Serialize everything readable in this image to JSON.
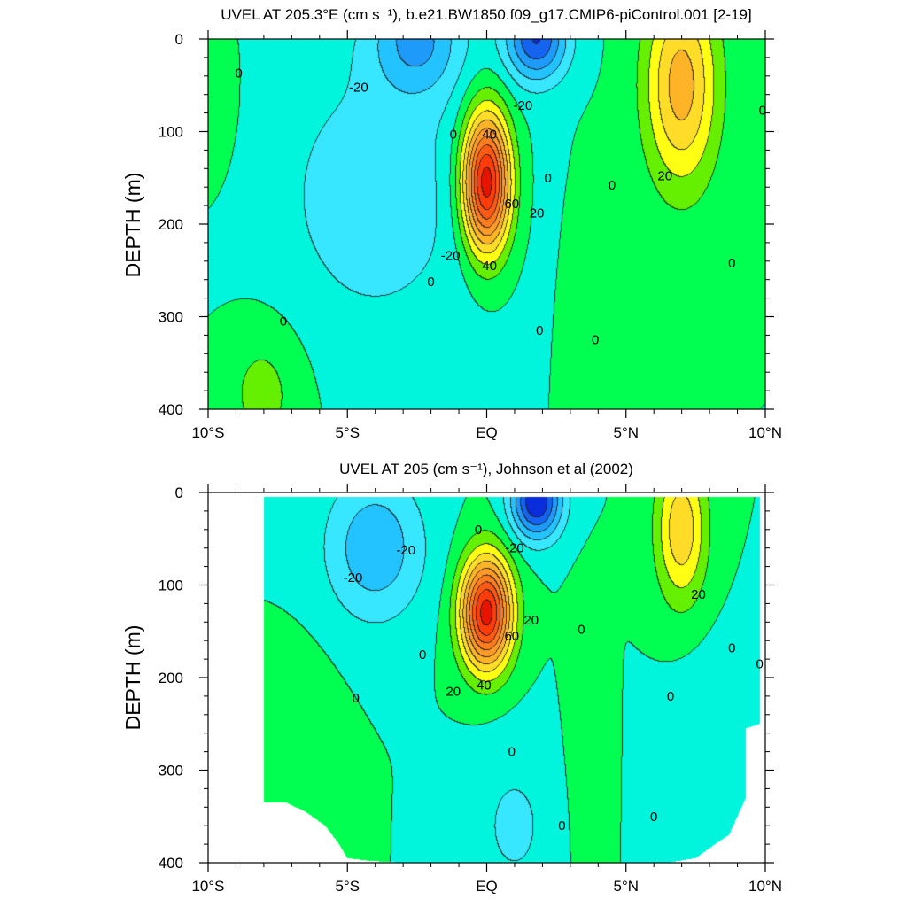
{
  "chart_data": [
    {
      "type": "contour",
      "title": "UVEL AT 205.3°E (cm s⁻¹), b.e21.BW1850.f09_g17.CMIP6-piControl.001 [2-19]",
      "ylabel": "DEPTH (m)",
      "xlabel": "",
      "x_ticks": [
        "10°S",
        "5°S",
        "EQ",
        "5°N",
        "10°N"
      ],
      "x_tick_values": [
        -10,
        -5,
        0,
        5,
        10
      ],
      "y_ticks": [
        "0",
        "100",
        "200",
        "300",
        "400"
      ],
      "y_tick_values": [
        0,
        100,
        200,
        300,
        400
      ],
      "xlim": [
        -10,
        10
      ],
      "ylim": [
        0,
        400
      ],
      "y_reversed": true,
      "contour_interval": 10,
      "features": [
        {
          "name": "EUC",
          "lat": 0.0,
          "depth": 155,
          "peak": 100,
          "sigma_lat": 0.85,
          "sigma_depth": 75
        },
        {
          "name": "NECC",
          "lat": 7.0,
          "depth": 50,
          "peak": 45,
          "sigma_lat": 1.3,
          "sigma_depth": 110
        },
        {
          "name": "SEC_north",
          "lat": 1.8,
          "depth": 0,
          "peak": -50,
          "sigma_lat": 1.1,
          "sigma_depth": 45
        },
        {
          "name": "SEC_south",
          "lat": -2.5,
          "depth": 0,
          "peak": -30,
          "sigma_lat": 1.6,
          "sigma_depth": 60
        },
        {
          "name": "SEC_broad",
          "lat": -4.0,
          "depth": 170,
          "peak": -15,
          "sigma_lat": 4.0,
          "sigma_depth": 170
        },
        {
          "name": "SSCC",
          "lat": -8.0,
          "depth": 380,
          "peak": 14,
          "sigma_lat": 1.5,
          "sigma_depth": 80
        },
        {
          "name": "NSCC",
          "lat": 4.0,
          "depth": 300,
          "peak": 8,
          "sigma_lat": 1.0,
          "sigma_depth": 140
        },
        {
          "name": "south_edge",
          "lat": -10.0,
          "depth": 80,
          "peak": 6,
          "sigma_lat": 1.2,
          "sigma_depth": 90
        }
      ],
      "contour_labels": [
        {
          "text": "0",
          "lat": -8.9,
          "depth": 37
        },
        {
          "text": "-20",
          "lat": -4.6,
          "depth": 52
        },
        {
          "text": "-20",
          "lat": 1.3,
          "depth": 72
        },
        {
          "text": "0",
          "lat": 9.9,
          "depth": 77
        },
        {
          "text": "40",
          "lat": 0.1,
          "depth": 103
        },
        {
          "text": "0",
          "lat": -1.2,
          "depth": 103
        },
        {
          "text": "0",
          "lat": 2.2,
          "depth": 150
        },
        {
          "text": "0",
          "lat": 4.5,
          "depth": 158
        },
        {
          "text": "20",
          "lat": 6.4,
          "depth": 148
        },
        {
          "text": "60",
          "lat": 0.9,
          "depth": 178
        },
        {
          "text": "20",
          "lat": 1.8,
          "depth": 188
        },
        {
          "text": "-20",
          "lat": -1.3,
          "depth": 234
        },
        {
          "text": "40",
          "lat": 0.1,
          "depth": 245
        },
        {
          "text": "0",
          "lat": 8.8,
          "depth": 242
        },
        {
          "text": "0",
          "lat": -2.0,
          "depth": 262
        },
        {
          "text": "0",
          "lat": -7.3,
          "depth": 305
        },
        {
          "text": "0",
          "lat": 1.9,
          "depth": 315
        },
        {
          "text": "0",
          "lat": 3.9,
          "depth": 325
        }
      ]
    },
    {
      "type": "contour",
      "title": "UVEL AT 205 (cm s⁻¹), Johnson et al (2002)",
      "ylabel": "DEPTH (m)",
      "xlabel": "",
      "x_ticks": [
        "10°S",
        "5°S",
        "EQ",
        "5°N",
        "10°N"
      ],
      "x_tick_values": [
        -10,
        -5,
        0,
        5,
        10
      ],
      "y_ticks": [
        "0",
        "100",
        "200",
        "300",
        "400"
      ],
      "y_tick_values": [
        0,
        100,
        200,
        300,
        400
      ],
      "xlim": [
        -10,
        10
      ],
      "ylim": [
        0,
        400
      ],
      "y_reversed": true,
      "contour_interval": 10,
      "data_region": {
        "lat_min": -8.0,
        "lat_max": 9.8,
        "depth_min": 5
      },
      "missing_bottom": [
        {
          "lat": -8.0,
          "depth": 335
        },
        {
          "lat": -7.2,
          "depth": 335
        },
        {
          "lat": -6.5,
          "depth": 345
        },
        {
          "lat": -5.8,
          "depth": 360
        },
        {
          "lat": -5.3,
          "depth": 380
        },
        {
          "lat": -5.0,
          "depth": 395
        },
        {
          "lat": -4.2,
          "depth": 398
        },
        {
          "lat": -3.0,
          "depth": 400
        },
        {
          "lat": 6.5,
          "depth": 400
        },
        {
          "lat": 7.5,
          "depth": 395
        },
        {
          "lat": 8.2,
          "depth": 380
        },
        {
          "lat": 8.7,
          "depth": 370
        },
        {
          "lat": 9.3,
          "depth": 330
        },
        {
          "lat": 9.3,
          "depth": 255
        },
        {
          "lat": 9.8,
          "depth": 250
        }
      ],
      "features": [
        {
          "name": "EUC",
          "lat": 0.0,
          "depth": 130,
          "peak": 95,
          "sigma_lat": 0.9,
          "sigma_depth": 60
        },
        {
          "name": "NECC",
          "lat": 7.0,
          "depth": 40,
          "peak": 38,
          "sigma_lat": 0.9,
          "sigma_depth": 80
        },
        {
          "name": "SEC_north",
          "lat": 1.8,
          "depth": 10,
          "peak": -60,
          "sigma_lat": 0.9,
          "sigma_depth": 40
        },
        {
          "name": "SEC_south",
          "lat": -4.0,
          "depth": 60,
          "peak": -28,
          "sigma_lat": 1.8,
          "sigma_depth": 80
        },
        {
          "name": "deep_west",
          "lat": 1.0,
          "depth": 360,
          "peak": -12,
          "sigma_lat": 1.6,
          "sigma_depth": 90
        },
        {
          "name": "NSCC",
          "lat": 3.6,
          "depth": 290,
          "peak": 10,
          "sigma_lat": 0.6,
          "sigma_depth": 130
        },
        {
          "name": "SSCC",
          "lat": -6.5,
          "depth": 300,
          "peak": 6,
          "sigma_lat": 1.2,
          "sigma_depth": 120
        },
        {
          "name": "north_deep",
          "lat": 8.0,
          "depth": 300,
          "peak": -8,
          "sigma_lat": 1.5,
          "sigma_depth": 120
        }
      ],
      "contour_labels": [
        {
          "text": "0",
          "lat": -0.3,
          "depth": 40
        },
        {
          "text": "-20",
          "lat": 1.0,
          "depth": 60
        },
        {
          "text": "-20",
          "lat": -2.9,
          "depth": 62
        },
        {
          "text": "-20",
          "lat": -4.8,
          "depth": 92
        },
        {
          "text": "20",
          "lat": 7.6,
          "depth": 110
        },
        {
          "text": "20",
          "lat": 1.6,
          "depth": 138
        },
        {
          "text": "0",
          "lat": 3.4,
          "depth": 148
        },
        {
          "text": "60",
          "lat": 0.9,
          "depth": 155
        },
        {
          "text": "0",
          "lat": 8.8,
          "depth": 168
        },
        {
          "text": "0",
          "lat": -2.3,
          "depth": 175
        },
        {
          "text": "0",
          "lat": 9.8,
          "depth": 185
        },
        {
          "text": "40",
          "lat": -0.1,
          "depth": 208
        },
        {
          "text": "20",
          "lat": -1.2,
          "depth": 215
        },
        {
          "text": "0",
          "lat": -4.7,
          "depth": 222
        },
        {
          "text": "0",
          "lat": 6.6,
          "depth": 220
        },
        {
          "text": "0",
          "lat": 0.9,
          "depth": 280
        },
        {
          "text": "0",
          "lat": 6.0,
          "depth": 350
        },
        {
          "text": "0",
          "lat": 2.7,
          "depth": 360
        }
      ]
    }
  ],
  "colormap": [
    {
      "min": -1000,
      "max": -50,
      "color": "#0a2ddc"
    },
    {
      "min": -50,
      "max": -40,
      "color": "#1464f0"
    },
    {
      "min": -40,
      "max": -30,
      "color": "#1e9bfa"
    },
    {
      "min": -30,
      "max": -20,
      "color": "#23c3ff"
    },
    {
      "min": -20,
      "max": -10,
      "color": "#37e6ff"
    },
    {
      "min": -10,
      "max": 0,
      "color": "#00f5dc"
    },
    {
      "min": 0,
      "max": 10,
      "color": "#00ff50"
    },
    {
      "min": 10,
      "max": 20,
      "color": "#64f000"
    },
    {
      "min": 20,
      "max": 30,
      "color": "#ffff14"
    },
    {
      "min": 30,
      "max": 40,
      "color": "#ffdc28"
    },
    {
      "min": 40,
      "max": 50,
      "color": "#ffb428"
    },
    {
      "min": 50,
      "max": 60,
      "color": "#ff9b28"
    },
    {
      "min": 60,
      "max": 70,
      "color": "#ff7d1e"
    },
    {
      "min": 70,
      "max": 80,
      "color": "#ff5a14"
    },
    {
      "min": 80,
      "max": 90,
      "color": "#ff3c0a"
    },
    {
      "min": 90,
      "max": 1000,
      "color": "#e61400"
    }
  ]
}
